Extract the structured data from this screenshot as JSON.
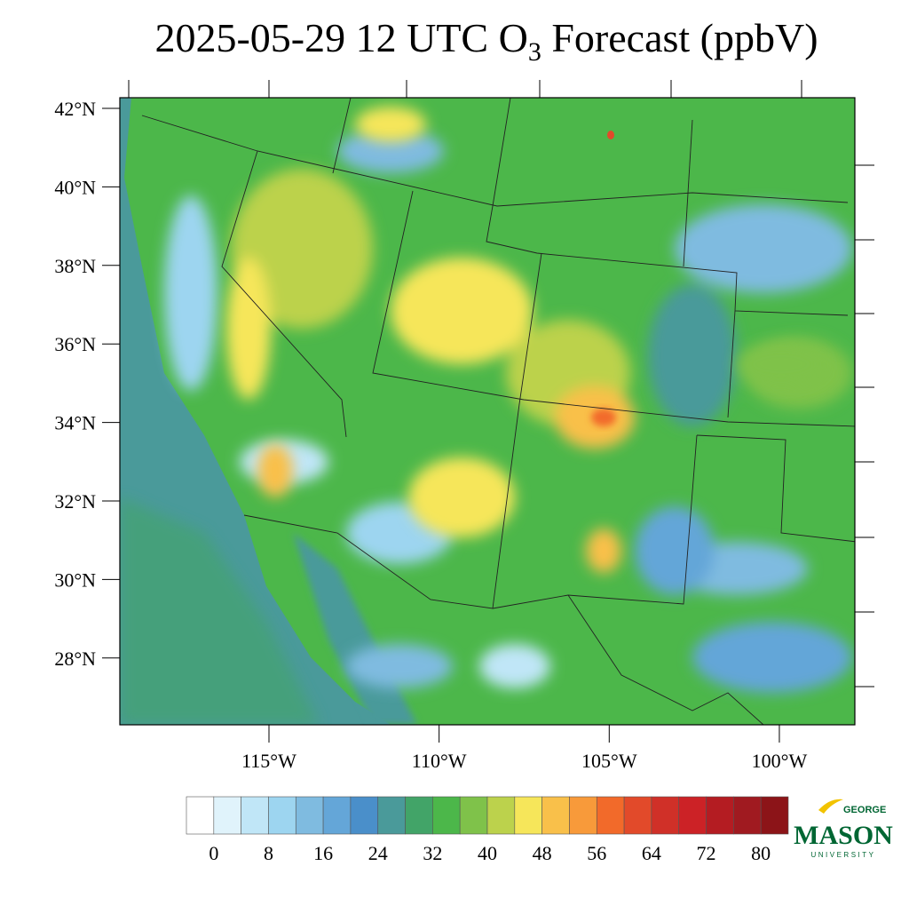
{
  "title": {
    "main": "2025-05-29 12 UTC O",
    "subscript": "3",
    "rest": " Forecast (ppbV)"
  },
  "map": {
    "lat_ticks": [
      {
        "value": 42,
        "label": "42°N"
      },
      {
        "value": 40,
        "label": "40°N"
      },
      {
        "value": 38,
        "label": "38°N"
      },
      {
        "value": 36,
        "label": "36°N"
      },
      {
        "value": 34,
        "label": "34°N"
      },
      {
        "value": 32,
        "label": "32°N"
      },
      {
        "value": 30,
        "label": "30°N"
      },
      {
        "value": 28,
        "label": "28°N"
      }
    ],
    "lon_ticks": [
      {
        "value": -115,
        "label": "115°W"
      },
      {
        "value": -110,
        "label": "110°W"
      },
      {
        "value": -105,
        "label": "105°W"
      },
      {
        "value": -100,
        "label": "100°W"
      }
    ]
  },
  "colorbar": {
    "colors": [
      "#ffffff",
      "#e0f3fb",
      "#c0e6f7",
      "#9dd5f0",
      "#7fbbe0",
      "#64a6d8",
      "#4a8fca",
      "#4a9a9a",
      "#42a468",
      "#4cb74a",
      "#7fc24a",
      "#bcd24c",
      "#f6e65a",
      "#f9c04a",
      "#f89a3a",
      "#f26a2a",
      "#e24a2a",
      "#d03028",
      "#cc2226",
      "#b41c22",
      "#a01a20",
      "#8c1418"
    ],
    "ticks": [
      0,
      8,
      16,
      24,
      32,
      40,
      48,
      56,
      64,
      72,
      80
    ],
    "step": 4
  },
  "logo": {
    "top": "GEORGE",
    "main": "MASON",
    "bottom": "UNIVERSITY"
  }
}
